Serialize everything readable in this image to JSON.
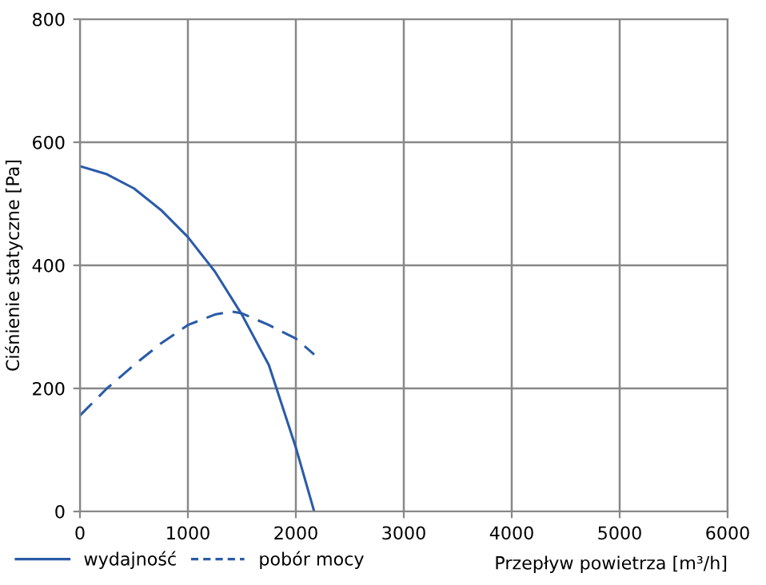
{
  "chart_data": {
    "type": "line",
    "xlabel": "Przepływ powietrza [m³/h]",
    "ylabel": "Ciśnienie statyczne [Pa]",
    "xlim": [
      0,
      6000
    ],
    "ylim": [
      0,
      800
    ],
    "xticks": [
      0,
      1000,
      2000,
      3000,
      4000,
      5000,
      6000
    ],
    "yticks": [
      0,
      200,
      400,
      600,
      800
    ],
    "grid": true,
    "legend": "bottom left",
    "marker": "none",
    "series": [
      {
        "name": "wydajność",
        "color": "#2a5ba8",
        "line_style": "solid",
        "x": [
          0,
          250,
          500,
          750,
          1000,
          1250,
          1500,
          1750,
          2000,
          2170
        ],
        "values": [
          561,
          548,
          525,
          490,
          446,
          390,
          320,
          238,
          104,
          0
        ]
      },
      {
        "name": "pobór mocy",
        "color": "#2a5ba8",
        "line_style": "dashed",
        "x": [
          0,
          250,
          500,
          750,
          1000,
          1250,
          1400,
          1500,
          1750,
          2000,
          2170
        ],
        "values": [
          156,
          200,
          238,
          273,
          303,
          320,
          325,
          322,
          303,
          281,
          255
        ]
      }
    ]
  }
}
